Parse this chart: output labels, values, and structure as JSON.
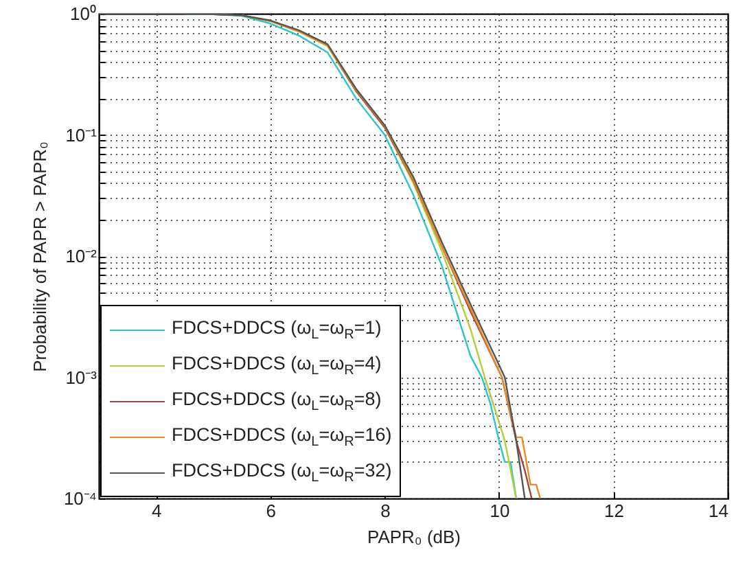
{
  "chart_data": {
    "type": "line",
    "xlabel": "PAPR₀ (dB)",
    "ylabel": "Probability of PAPR > PAPR₀",
    "xlim": [
      3,
      14
    ],
    "xticks": [
      4,
      6,
      8,
      10,
      12,
      14
    ],
    "ylim": [
      0.0001,
      1
    ],
    "yticks": [
      {
        "value": 0.0001,
        "label": "10⁻⁴"
      },
      {
        "value": 0.001,
        "label": "10⁻³"
      },
      {
        "value": 0.01,
        "label": "10⁻²"
      },
      {
        "value": 0.1,
        "label": "10⁻¹"
      },
      {
        "value": 1,
        "label": "10⁰"
      }
    ],
    "log": "y",
    "grid": true,
    "legend": "bottom left",
    "series": [
      {
        "name": "FDCS+DDCS (ω$_{L}$=ω$_{R}$=1)",
        "color": "#2cc6c6",
        "x": [
          4.5,
          5,
          5.5,
          6,
          6.5,
          7,
          7.5,
          8,
          8.5,
          9,
          9.5,
          9.7,
          9.85,
          10,
          10.1,
          10.2,
          10.3
        ],
        "values": [
          0.998,
          0.99,
          0.96,
          0.83,
          0.66,
          0.48,
          0.2,
          0.1,
          0.032,
          0.0083,
          0.0015,
          0.001,
          0.0006,
          0.0003,
          0.0002,
          0.0002,
          0.0001
        ]
      },
      {
        "name": "FDCS+DDCS (ω$_{L}$=ω$_{R}$=4)",
        "color": "#b8cc3a",
        "x": [
          5.5,
          6,
          6.5,
          7,
          7.5,
          8,
          8.5,
          9,
          9.5,
          9.75,
          9.9,
          10.1,
          10.3
        ],
        "values": [
          0.97,
          0.87,
          0.71,
          0.54,
          0.23,
          0.115,
          0.04,
          0.011,
          0.0025,
          0.001,
          0.0006,
          0.0003,
          0.0001
        ]
      },
      {
        "name": "FDCS+DDCS (ω$_{L}$=ω$_{R}$=8)",
        "color": "#a0463a",
        "x": [
          5,
          5.5,
          6,
          6.5,
          7,
          7.5,
          8,
          8.5,
          9,
          9.5,
          10.05,
          10.3,
          10.45,
          10.57
        ],
        "values": [
          0.99,
          0.97,
          0.87,
          0.72,
          0.55,
          0.23,
          0.115,
          0.042,
          0.012,
          0.0035,
          0.001,
          0.0003,
          0.00017,
          0.0001
        ]
      },
      {
        "name": "FDCS+DDCS (ω$_{L}$=ω$_{R}$=16)",
        "color": "#f08a24",
        "x": [
          5.5,
          6,
          6.5,
          7,
          7.5,
          8,
          8.5,
          9,
          9.5,
          10.05,
          10.2,
          10.3,
          10.4,
          10.55,
          10.65,
          10.72
        ],
        "values": [
          0.97,
          0.87,
          0.72,
          0.55,
          0.235,
          0.118,
          0.043,
          0.012,
          0.0037,
          0.001,
          0.0005,
          0.00032,
          0.00032,
          0.00013,
          0.00013,
          0.0001
        ]
      },
      {
        "name": "FDCS+DDCS (ω$_{L}$=ω$_{R}$=32)",
        "color": "#555555",
        "x": [
          3,
          4,
          4.5,
          5,
          5.5,
          6,
          6.5,
          7,
          7.5,
          8,
          8.5,
          9,
          9.5,
          10.1,
          10.3,
          10.45
        ],
        "values": [
          1,
          1,
          0.998,
          0.99,
          0.97,
          0.88,
          0.73,
          0.56,
          0.24,
          0.12,
          0.045,
          0.013,
          0.004,
          0.001,
          0.0003,
          0.0001
        ]
      }
    ]
  }
}
